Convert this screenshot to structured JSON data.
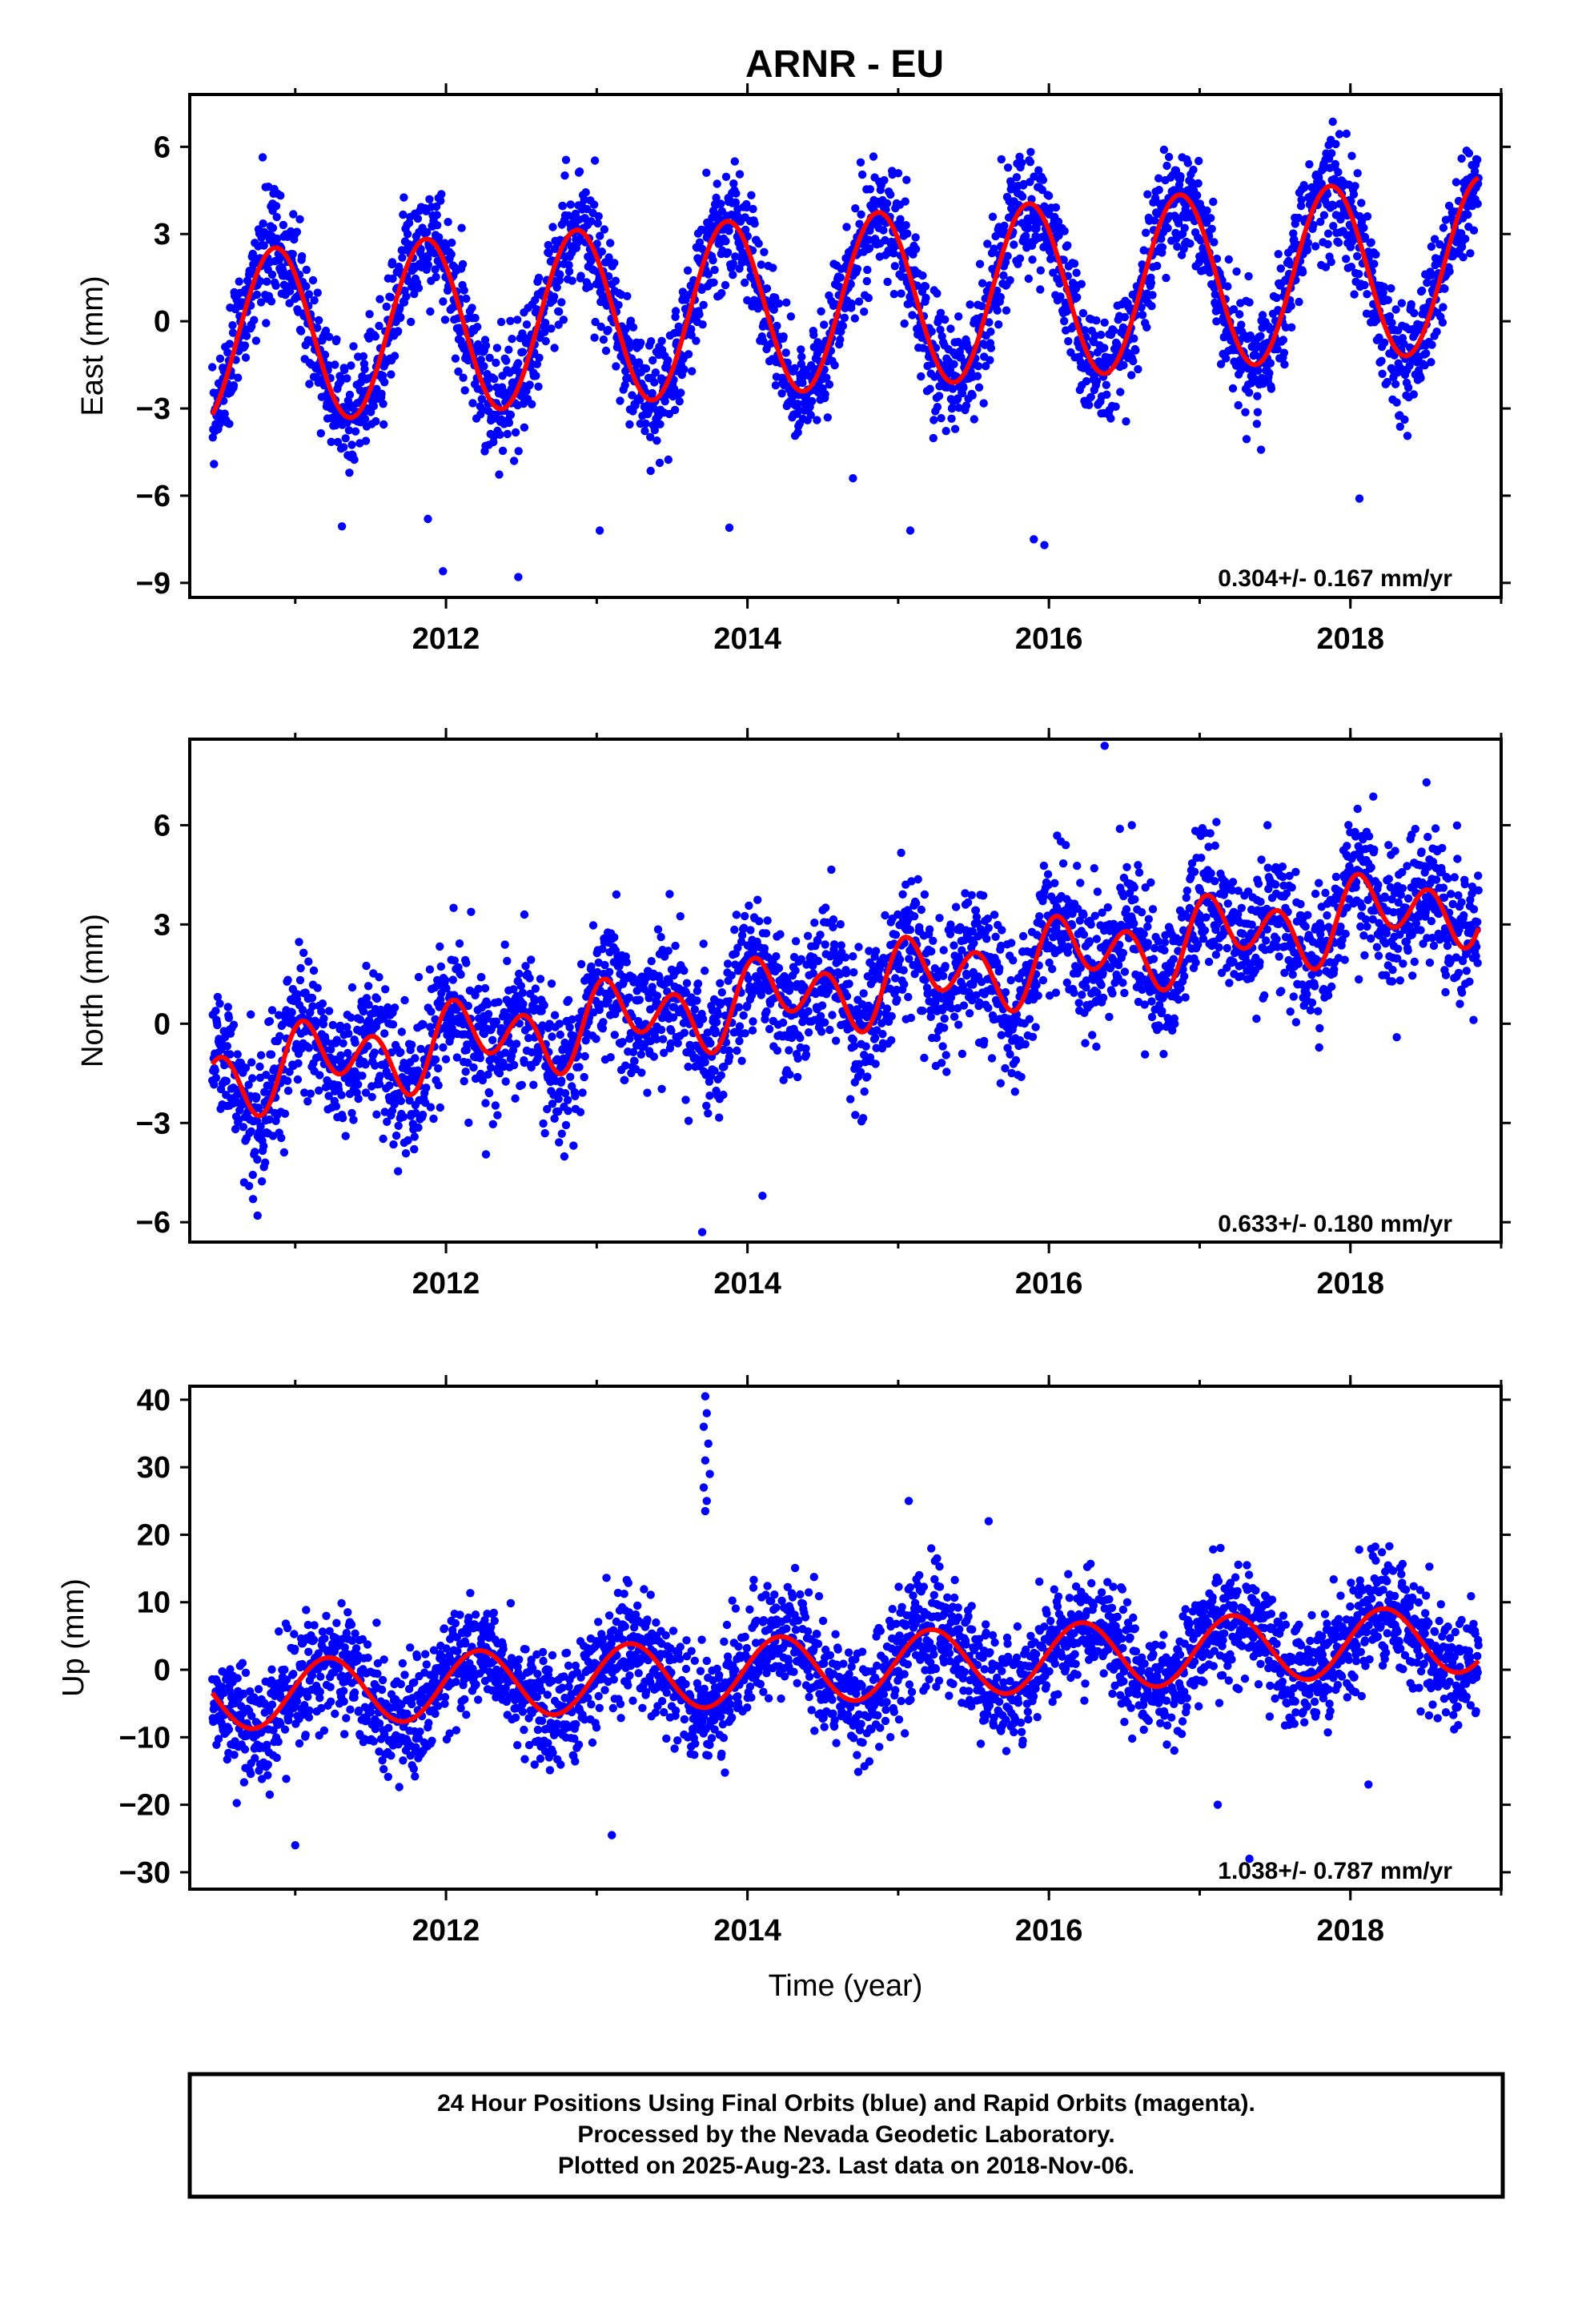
{
  "chart_data": [
    {
      "type": "scatter",
      "component": "East",
      "title": "ARNR - EU",
      "ylabel": "East (mm)",
      "xlabel": "",
      "ylim": [
        -9.5,
        7.8
      ],
      "xlim": [
        2010.3,
        2019.0
      ],
      "yticks": [
        6,
        3,
        0,
        -3,
        -6,
        -9
      ],
      "yticklabels": [
        "6",
        "3",
        "0",
        "−3",
        "−6",
        "−9"
      ],
      "xticks": [
        2012,
        2014,
        2016,
        2018
      ],
      "xticklabels": [
        "2012",
        "2014",
        "2016",
        "2018"
      ],
      "rate_text": "0.304+/- 0.167 mm/yr",
      "data_range": [
        2010.45,
        2018.85
      ],
      "model": {
        "offset": -0.6,
        "trend_mm_per_yr": 0.304,
        "annual_amp": 3.0,
        "annual_phase": 2.4,
        "semiannual_amp": 0.0,
        "semiannual_phase": 0
      },
      "series": [
        {
          "name": "",
          "kind": "scatter",
          "color": "#0000ff",
          "noise_sd": 1.0
        },
        {
          "name": "",
          "kind": "line",
          "color": "#ff0000"
        }
      ],
      "outliers": [
        [
          2010.85,
          3.8
        ],
        [
          2011.88,
          -6.8
        ],
        [
          2011.98,
          -8.6
        ],
        [
          2012.48,
          -8.8
        ],
        [
          2013.02,
          -7.2
        ],
        [
          2013.88,
          -7.1
        ],
        [
          2015.08,
          -7.2
        ],
        [
          2015.9,
          -7.5
        ],
        [
          2015.97,
          -7.7
        ],
        [
          2018.06,
          -6.1
        ],
        [
          2014.7,
          -5.4
        ]
      ]
    },
    {
      "type": "scatter",
      "component": "North",
      "ylabel": "North (mm)",
      "xlabel": "",
      "ylim": [
        -6.6,
        8.6
      ],
      "xlim": [
        2010.3,
        2019.0
      ],
      "yticks": [
        6,
        3,
        0,
        -3,
        -6
      ],
      "yticklabels": [
        "6",
        "3",
        "0",
        "−3",
        "−6"
      ],
      "xticks": [
        2012,
        2014,
        2016,
        2018
      ],
      "xticklabels": [
        "2012",
        "2014",
        "2016",
        "2018"
      ],
      "rate_text": "0.633+/- 0.180 mm/yr",
      "data_range": [
        2010.45,
        2018.85
      ],
      "model": {
        "offset": -1.6,
        "trend_mm_per_yr": 0.633,
        "annual_amp": 0.6,
        "annual_phase": 0.5,
        "semiannual_amp": 0.9,
        "semiannual_phase": 1.2
      },
      "series": [
        {
          "name": "",
          "kind": "scatter",
          "color": "#0000ff",
          "noise_sd": 1.05
        },
        {
          "name": "",
          "kind": "line",
          "color": "#ff0000"
        }
      ],
      "outliers": [
        [
          2016.37,
          8.4
        ],
        [
          2016.55,
          6.0
        ],
        [
          2013.7,
          -6.3
        ],
        [
          2014.1,
          -5.2
        ],
        [
          2010.75,
          -5.8
        ],
        [
          2010.72,
          -5.3
        ],
        [
          2012.05,
          3.5
        ],
        [
          2012.52,
          3.3
        ],
        [
          2017.45,
          6.0
        ]
      ]
    },
    {
      "type": "scatter",
      "component": "Up",
      "ylabel": "Up (mm)",
      "xlabel": "Time (year)",
      "ylim": [
        -32.5,
        42.0
      ],
      "xlim": [
        2010.3,
        2019.0
      ],
      "yticks": [
        40,
        30,
        20,
        10,
        0,
        -10,
        -20,
        -30
      ],
      "yticklabels": [
        "40",
        "30",
        "20",
        "10",
        "0",
        "−10",
        "−20",
        "−30"
      ],
      "xticks": [
        2012,
        2014,
        2016,
        2018
      ],
      "xticklabels": [
        "2012",
        "2014",
        "2016",
        "2018"
      ],
      "rate_text": "1.038+/- 0.787 mm/yr",
      "data_range": [
        2010.45,
        2018.85
      ],
      "model": {
        "offset": -4.0,
        "trend_mm_per_yr": 1.038,
        "annual_amp": 5.0,
        "annual_phase": 0.2,
        "semiannual_amp": 0.0,
        "semiannual_phase": 0
      },
      "series": [
        {
          "name": "",
          "kind": "scatter",
          "color": "#0000ff",
          "noise_sd": 4.2
        },
        {
          "name": "",
          "kind": "line",
          "color": "#ff0000"
        }
      ],
      "outliers": [
        [
          2013.72,
          40.5
        ],
        [
          2013.73,
          38.0
        ],
        [
          2013.71,
          36.0
        ],
        [
          2013.74,
          33.5
        ],
        [
          2013.72,
          31.0
        ],
        [
          2013.75,
          29.0
        ],
        [
          2013.71,
          27.0
        ],
        [
          2013.73,
          25.0
        ],
        [
          2013.72,
          23.5
        ],
        [
          2015.07,
          25.0
        ],
        [
          2015.6,
          22.0
        ],
        [
          2017.33,
          -28.0
        ],
        [
          2017.12,
          -20.0
        ],
        [
          2011.0,
          -26.0
        ],
        [
          2013.1,
          -24.5
        ],
        [
          2018.12,
          -17.0
        ]
      ]
    }
  ],
  "footer": {
    "line1": "24 Hour Positions Using Final Orbits (blue) and Rapid Orbits (magenta).",
    "line2": "Processed by the Nevada Geodetic Laboratory.",
    "line3": "Plotted on 2025-Aug-23. Last data on 2018-Nov-06."
  },
  "colors": {
    "points": "#0000ff",
    "model": "#ff0000",
    "frame": "#000000"
  }
}
